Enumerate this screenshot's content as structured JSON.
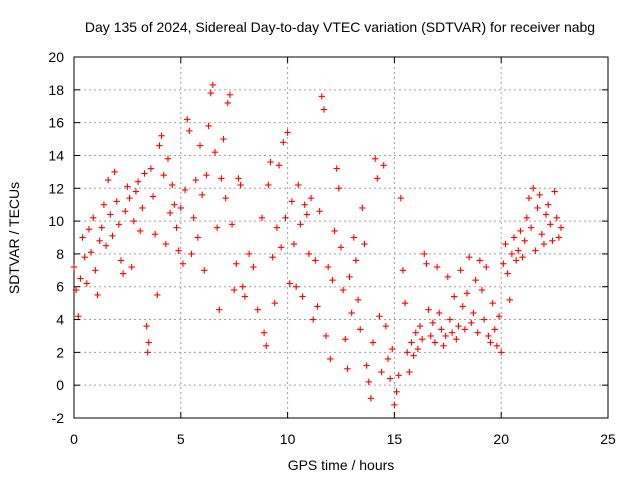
{
  "chart_data": {
    "type": "scatter",
    "title": "Day 135 of 2024, Sidereal Day-to-day VTEC variation (SDTVAR) for receiver nabg",
    "xlabel": "GPS time / hours",
    "ylabel": "SDTVAR / TECUs",
    "xlim": [
      0,
      25
    ],
    "ylim": [
      -2,
      20
    ],
    "xticks": [
      0,
      5,
      10,
      15,
      20,
      25
    ],
    "yticks": [
      -2,
      0,
      2,
      4,
      6,
      8,
      10,
      12,
      14,
      16,
      18,
      20
    ],
    "grid": true,
    "marker": "+",
    "color": "#ff0000",
    "series": [
      {
        "name": "SDTVAR",
        "points": [
          [
            0.0,
            7.2
          ],
          [
            0.1,
            5.8
          ],
          [
            0.2,
            4.2
          ],
          [
            0.3,
            6.5
          ],
          [
            0.4,
            9.0
          ],
          [
            0.5,
            7.8
          ],
          [
            0.6,
            6.2
          ],
          [
            0.7,
            9.5
          ],
          [
            0.8,
            8.1
          ],
          [
            0.9,
            10.2
          ],
          [
            1.0,
            7.0
          ],
          [
            1.1,
            5.5
          ],
          [
            1.2,
            8.8
          ],
          [
            1.3,
            9.6
          ],
          [
            1.4,
            11.0
          ],
          [
            1.5,
            8.5
          ],
          [
            1.6,
            12.5
          ],
          [
            1.7,
            10.4
          ],
          [
            1.8,
            9.1
          ],
          [
            1.9,
            13.0
          ],
          [
            2.0,
            11.2
          ],
          [
            2.1,
            9.8
          ],
          [
            2.2,
            7.6
          ],
          [
            2.3,
            6.8
          ],
          [
            2.4,
            10.6
          ],
          [
            2.5,
            12.1
          ],
          [
            2.6,
            11.4
          ],
          [
            2.7,
            7.2
          ],
          [
            2.8,
            10.0
          ],
          [
            2.9,
            11.8
          ],
          [
            3.0,
            12.4
          ],
          [
            3.1,
            9.4
          ],
          [
            3.2,
            10.8
          ],
          [
            3.3,
            12.9
          ],
          [
            3.4,
            3.6
          ],
          [
            3.45,
            2.0
          ],
          [
            3.5,
            2.6
          ],
          [
            3.6,
            13.2
          ],
          [
            3.7,
            11.5
          ],
          [
            3.8,
            9.2
          ],
          [
            3.9,
            5.5
          ],
          [
            4.0,
            14.6
          ],
          [
            4.1,
            15.2
          ],
          [
            4.2,
            12.8
          ],
          [
            4.3,
            8.6
          ],
          [
            4.4,
            13.8
          ],
          [
            4.5,
            10.5
          ],
          [
            4.6,
            12.2
          ],
          [
            4.7,
            11.0
          ],
          [
            4.8,
            9.6
          ],
          [
            4.9,
            8.2
          ],
          [
            5.0,
            10.8
          ],
          [
            5.1,
            7.4
          ],
          [
            5.2,
            11.9
          ],
          [
            5.3,
            16.2
          ],
          [
            5.4,
            15.5
          ],
          [
            5.5,
            8.0
          ],
          [
            5.6,
            10.2
          ],
          [
            5.7,
            12.5
          ],
          [
            5.8,
            9.0
          ],
          [
            5.9,
            14.6
          ],
          [
            6.0,
            11.6
          ],
          [
            6.1,
            7.0
          ],
          [
            6.2,
            12.8
          ],
          [
            6.3,
            15.8
          ],
          [
            6.4,
            17.8
          ],
          [
            6.5,
            18.3
          ],
          [
            6.6,
            14.2
          ],
          [
            6.7,
            9.6
          ],
          [
            6.8,
            4.6
          ],
          [
            6.9,
            12.6
          ],
          [
            7.0,
            15.0
          ],
          [
            7.1,
            11.4
          ],
          [
            7.2,
            17.2
          ],
          [
            7.3,
            17.7
          ],
          [
            7.4,
            9.8
          ],
          [
            7.5,
            5.8
          ],
          [
            7.6,
            7.4
          ],
          [
            7.7,
            12.6
          ],
          [
            7.8,
            12.2
          ],
          [
            7.9,
            6.0
          ],
          [
            8.0,
            5.4
          ],
          [
            8.2,
            8.0
          ],
          [
            8.4,
            7.2
          ],
          [
            8.6,
            4.6
          ],
          [
            8.8,
            10.2
          ],
          [
            8.9,
            3.2
          ],
          [
            9.0,
            2.4
          ],
          [
            9.1,
            12.2
          ],
          [
            9.2,
            13.6
          ],
          [
            9.3,
            7.8
          ],
          [
            9.4,
            5.0
          ],
          [
            9.5,
            9.6
          ],
          [
            9.6,
            13.4
          ],
          [
            9.7,
            8.4
          ],
          [
            9.8,
            14.8
          ],
          [
            9.9,
            10.2
          ],
          [
            10.0,
            15.4
          ],
          [
            10.1,
            6.2
          ],
          [
            10.2,
            11.2
          ],
          [
            10.3,
            8.6
          ],
          [
            10.4,
            6.0
          ],
          [
            10.5,
            12.2
          ],
          [
            10.6,
            9.8
          ],
          [
            10.7,
            5.4
          ],
          [
            10.8,
            11.0
          ],
          [
            10.9,
            10.4
          ],
          [
            11.0,
            8.0
          ],
          [
            11.1,
            11.4
          ],
          [
            11.2,
            4.0
          ],
          [
            11.3,
            7.6
          ],
          [
            11.4,
            4.8
          ],
          [
            11.5,
            10.6
          ],
          [
            11.6,
            17.6
          ],
          [
            11.7,
            16.8
          ],
          [
            11.8,
            3.0
          ],
          [
            11.9,
            7.2
          ],
          [
            12.0,
            1.6
          ],
          [
            12.1,
            6.4
          ],
          [
            12.2,
            9.4
          ],
          [
            12.3,
            13.2
          ],
          [
            12.4,
            12.0
          ],
          [
            12.5,
            8.4
          ],
          [
            12.6,
            5.8
          ],
          [
            12.7,
            2.8
          ],
          [
            12.8,
            1.0
          ],
          [
            12.9,
            6.6
          ],
          [
            13.0,
            4.4
          ],
          [
            13.1,
            9.0
          ],
          [
            13.2,
            7.6
          ],
          [
            13.3,
            5.2
          ],
          [
            13.4,
            3.4
          ],
          [
            13.5,
            10.8
          ],
          [
            13.6,
            8.6
          ],
          [
            13.7,
            1.2
          ],
          [
            13.8,
            0.2
          ],
          [
            13.9,
            -0.8
          ],
          [
            14.0,
            2.6
          ],
          [
            14.1,
            13.8
          ],
          [
            14.2,
            12.6
          ],
          [
            14.3,
            4.2
          ],
          [
            14.4,
            0.8
          ],
          [
            14.5,
            13.4
          ],
          [
            14.6,
            3.6
          ],
          [
            14.7,
            1.6
          ],
          [
            14.8,
            0.4
          ],
          [
            14.9,
            2.2
          ],
          [
            15.0,
            -1.2
          ],
          [
            15.1,
            -0.4
          ],
          [
            15.2,
            0.6
          ],
          [
            15.3,
            11.4
          ],
          [
            15.4,
            7.0
          ],
          [
            15.5,
            5.0
          ],
          [
            15.6,
            2.0
          ],
          [
            15.7,
            0.8
          ],
          [
            15.8,
            2.6
          ],
          [
            15.9,
            1.8
          ],
          [
            16.0,
            3.2
          ],
          [
            16.1,
            2.2
          ],
          [
            16.2,
            3.6
          ],
          [
            16.3,
            2.8
          ],
          [
            16.4,
            8.0
          ],
          [
            16.5,
            7.4
          ],
          [
            16.6,
            4.6
          ],
          [
            16.7,
            3.0
          ],
          [
            16.8,
            3.8
          ],
          [
            16.9,
            2.6
          ],
          [
            17.0,
            7.2
          ],
          [
            17.1,
            4.4
          ],
          [
            17.2,
            3.4
          ],
          [
            17.3,
            2.4
          ],
          [
            17.4,
            3.0
          ],
          [
            17.5,
            6.6
          ],
          [
            17.6,
            4.0
          ],
          [
            17.7,
            3.2
          ],
          [
            17.8,
            5.4
          ],
          [
            17.9,
            2.8
          ],
          [
            18.0,
            3.6
          ],
          [
            18.1,
            7.0
          ],
          [
            18.2,
            4.8
          ],
          [
            18.3,
            3.4
          ],
          [
            18.4,
            5.6
          ],
          [
            18.5,
            7.8
          ],
          [
            18.6,
            3.8
          ],
          [
            18.7,
            4.4
          ],
          [
            18.8,
            6.4
          ],
          [
            18.9,
            3.2
          ],
          [
            19.0,
            7.6
          ],
          [
            19.1,
            5.8
          ],
          [
            19.2,
            4.0
          ],
          [
            19.3,
            7.2
          ],
          [
            19.4,
            3.0
          ],
          [
            19.5,
            2.6
          ],
          [
            19.6,
            5.0
          ],
          [
            19.7,
            3.4
          ],
          [
            19.8,
            2.4
          ],
          [
            19.9,
            4.2
          ],
          [
            20.0,
            2.0
          ],
          [
            20.1,
            7.4
          ],
          [
            20.2,
            8.6
          ],
          [
            20.3,
            6.8
          ],
          [
            20.4,
            5.2
          ],
          [
            20.5,
            8.0
          ],
          [
            20.6,
            9.0
          ],
          [
            20.7,
            7.6
          ],
          [
            20.8,
            8.2
          ],
          [
            20.9,
            9.4
          ],
          [
            21.0,
            7.8
          ],
          [
            21.1,
            8.8
          ],
          [
            21.2,
            10.2
          ],
          [
            21.3,
            11.4
          ],
          [
            21.4,
            9.6
          ],
          [
            21.5,
            12.0
          ],
          [
            21.6,
            8.2
          ],
          [
            21.7,
            10.8
          ],
          [
            21.8,
            11.6
          ],
          [
            21.9,
            9.2
          ],
          [
            22.0,
            8.6
          ],
          [
            22.1,
            10.4
          ],
          [
            22.2,
            11.0
          ],
          [
            22.3,
            9.8
          ],
          [
            22.4,
            8.8
          ],
          [
            22.5,
            11.8
          ],
          [
            22.6,
            10.2
          ],
          [
            22.7,
            9.0
          ],
          [
            22.8,
            9.6
          ]
        ]
      }
    ]
  }
}
